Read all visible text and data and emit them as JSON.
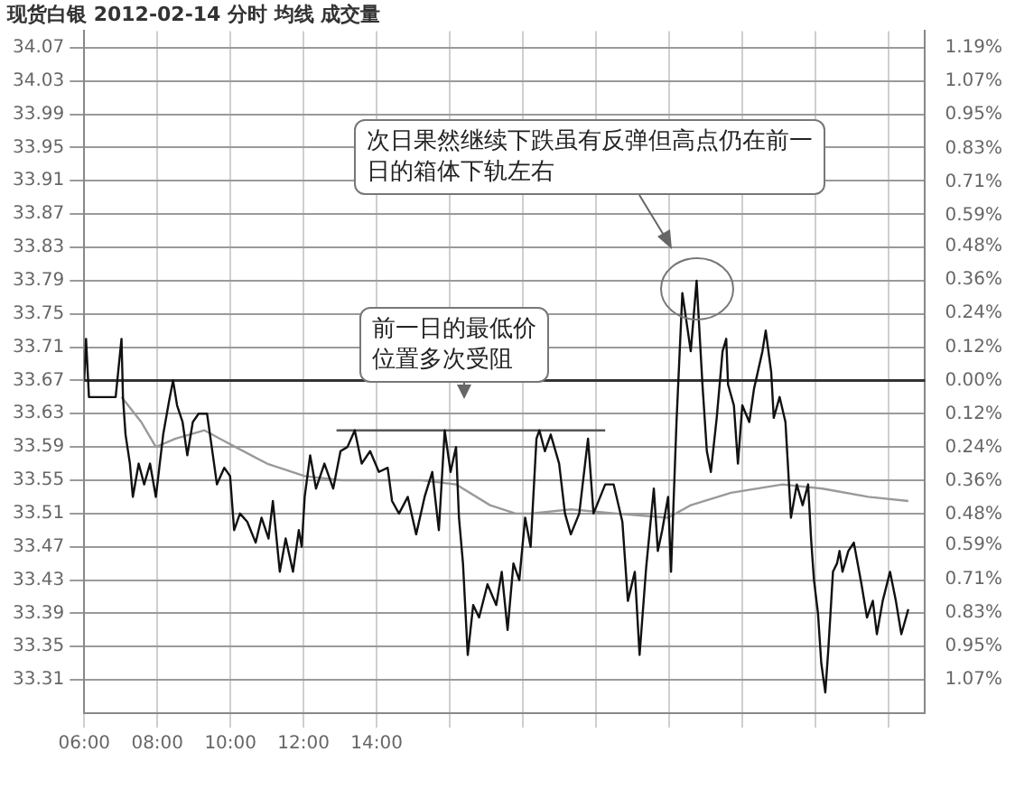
{
  "chart_data": {
    "type": "line",
    "title": "现货白银 2012-02-14 分时 均线 成交量",
    "xlim": [
      6,
      29
    ],
    "xticks": [
      {
        "value": 6,
        "label": "06:00"
      },
      {
        "value": 8,
        "label": "08:00"
      },
      {
        "value": 10,
        "label": "10:00"
      },
      {
        "value": 12,
        "label": "12:00"
      },
      {
        "value": 14,
        "label": "14:00"
      },
      {
        "value": 16,
        "label": null
      },
      {
        "value": 18,
        "label": null
      },
      {
        "value": 20,
        "label": null
      },
      {
        "value": 22,
        "label": null
      },
      {
        "value": 24,
        "label": null
      },
      {
        "value": 26,
        "label": null
      },
      {
        "value": 28,
        "label": null
      }
    ],
    "ylim": [
      33.27,
      34.09
    ],
    "yticks": [
      33.31,
      33.35,
      33.39,
      33.43,
      33.47,
      33.51,
      33.55,
      33.59,
      33.63,
      33.67,
      33.71,
      33.75,
      33.79,
      33.83,
      33.87,
      33.91,
      33.95,
      33.99,
      34.03,
      34.07
    ],
    "y2lim": [
      -1.19,
      1.25
    ],
    "y2ticks": [
      {
        "value": -1.07,
        "label": "1.07%"
      },
      {
        "value": -0.95,
        "label": "0.95%"
      },
      {
        "value": -0.83,
        "label": "0.83%"
      },
      {
        "value": -0.71,
        "label": "0.71%"
      },
      {
        "value": -0.59,
        "label": "0.59%"
      },
      {
        "value": -0.48,
        "label": "0.48%"
      },
      {
        "value": -0.36,
        "label": "0.36%"
      },
      {
        "value": -0.24,
        "label": "0.24%"
      },
      {
        "value": -0.12,
        "label": "0.12%"
      },
      {
        "value": 0,
        "label": "0.00%"
      },
      {
        "value": 0.12,
        "label": "0.12%"
      },
      {
        "value": 0.24,
        "label": "0.24%"
      },
      {
        "value": 0.36,
        "label": "0.36%"
      },
      {
        "value": 0.48,
        "label": "0.48%"
      },
      {
        "value": 0.59,
        "label": "0.59%"
      },
      {
        "value": 0.71,
        "label": "0.71%"
      },
      {
        "value": 0.83,
        "label": "0.83%"
      },
      {
        "value": 0.95,
        "label": "0.95%"
      },
      {
        "value": 1.07,
        "label": "1.07%"
      },
      {
        "value": 1.19,
        "label": "1.19%"
      }
    ],
    "grid": true,
    "legend": false,
    "marker": "none",
    "line_style": "solid",
    "ref_lines": [
      {
        "axis": "y",
        "value": 33.67,
        "color": "#333333"
      }
    ],
    "annotations": [
      "前一日的最低价位置多次受阻",
      "次日果然继续下跌虽有反弹但高点仍在前一日的箱体下轨左右"
    ],
    "series": [
      {
        "color": "#111111",
        "x": [
          6.0,
          6.05,
          6.13,
          6.86,
          7.02,
          7.06,
          7.13,
          7.25,
          7.33,
          7.49,
          7.64,
          7.8,
          7.96,
          8.16,
          8.32,
          8.43,
          8.54,
          8.69,
          8.82,
          8.97,
          9.13,
          9.36,
          9.52,
          9.63,
          9.83,
          9.99,
          10.1,
          10.26,
          10.46,
          10.69,
          10.85,
          11.04,
          11.16,
          11.35,
          11.51,
          11.71,
          11.87,
          11.95,
          12.03,
          12.18,
          12.34,
          12.57,
          12.81,
          13.01,
          13.2,
          13.4,
          13.59,
          13.82,
          14.06,
          14.3,
          14.42,
          14.61,
          14.85,
          15.08,
          15.31,
          15.52,
          15.7,
          15.86,
          16.02,
          16.17,
          16.25,
          16.36,
          16.49,
          16.64,
          16.8,
          17.03,
          17.27,
          17.42,
          17.58,
          17.74,
          17.9,
          18.06,
          18.21,
          18.37,
          18.45,
          18.6,
          18.76,
          18.99,
          19.15,
          19.31,
          19.54,
          19.78,
          19.93,
          20.25,
          20.48,
          20.72,
          20.87,
          21.06,
          21.19,
          21.37,
          21.58,
          21.69,
          21.81,
          21.97,
          22.05,
          22.2,
          22.36,
          22.59,
          22.75,
          22.91,
          23.03,
          23.14,
          23.3,
          23.46,
          23.56,
          23.61,
          23.77,
          23.88,
          24.0,
          24.19,
          24.32,
          24.55,
          24.64,
          24.79,
          24.86,
          25.02,
          25.18,
          25.33,
          25.49,
          25.65,
          25.8,
          25.88,
          25.96,
          26.07,
          26.16,
          26.27,
          26.35,
          26.48,
          26.59,
          26.66,
          26.74,
          26.9,
          27.05,
          27.26,
          27.41,
          27.57,
          27.68,
          27.84,
          28.04,
          28.2,
          28.35,
          28.54
        ],
        "values": [
          33.67,
          33.72,
          33.65,
          33.65,
          33.72,
          33.65,
          33.605,
          33.57,
          33.53,
          33.57,
          33.545,
          33.57,
          33.53,
          33.605,
          33.645,
          33.67,
          33.64,
          33.62,
          33.58,
          33.62,
          33.63,
          33.63,
          33.58,
          33.545,
          33.565,
          33.555,
          33.49,
          33.51,
          33.5,
          33.475,
          33.505,
          33.48,
          33.525,
          33.44,
          33.48,
          33.44,
          33.49,
          33.47,
          33.53,
          33.58,
          33.54,
          33.57,
          33.54,
          33.585,
          33.59,
          33.61,
          33.57,
          33.585,
          33.56,
          33.565,
          33.525,
          33.51,
          33.53,
          33.485,
          33.53,
          33.56,
          33.49,
          33.61,
          33.56,
          33.59,
          33.505,
          33.45,
          33.34,
          33.4,
          33.385,
          33.425,
          33.4,
          33.44,
          33.37,
          33.45,
          33.43,
          33.505,
          33.47,
          33.6,
          33.61,
          33.585,
          33.605,
          33.57,
          33.51,
          33.485,
          33.51,
          33.6,
          33.51,
          33.545,
          33.545,
          33.5,
          33.405,
          33.44,
          33.34,
          33.445,
          33.54,
          33.465,
          33.49,
          33.53,
          33.44,
          33.62,
          33.775,
          33.705,
          33.79,
          33.665,
          33.585,
          33.56,
          33.625,
          33.705,
          33.72,
          33.665,
          33.64,
          33.57,
          33.64,
          33.62,
          33.66,
          33.705,
          33.73,
          33.68,
          33.625,
          33.65,
          33.62,
          33.505,
          33.545,
          33.52,
          33.545,
          33.48,
          33.43,
          33.39,
          33.33,
          33.295,
          33.345,
          33.44,
          33.45,
          33.465,
          33.44,
          33.465,
          33.475,
          33.425,
          33.385,
          33.405,
          33.365,
          33.405,
          33.44,
          33.405,
          33.365,
          33.395
        ]
      },
      {
        "color": "#999999",
        "x": [
          7.02,
          7.56,
          7.96,
          8.5,
          9.29,
          9.92,
          11.0,
          12.03,
          13.04,
          15.23,
          16.17,
          17.1,
          17.8,
          18.21,
          19.31,
          20.56,
          21.97,
          22.59,
          23.69,
          25.1,
          26.19,
          27.45,
          28.54
        ],
        "values": [
          33.65,
          33.62,
          33.59,
          33.6,
          33.61,
          33.595,
          33.57,
          33.555,
          33.55,
          33.55,
          33.545,
          33.52,
          33.51,
          33.51,
          33.515,
          33.51,
          33.505,
          33.52,
          33.535,
          33.545,
          33.54,
          33.53,
          33.525
        ]
      },
      {
        "color": "#555555",
        "x": [
          12.9,
          20.25
        ],
        "values": [
          33.61,
          33.61
        ]
      }
    ]
  }
}
